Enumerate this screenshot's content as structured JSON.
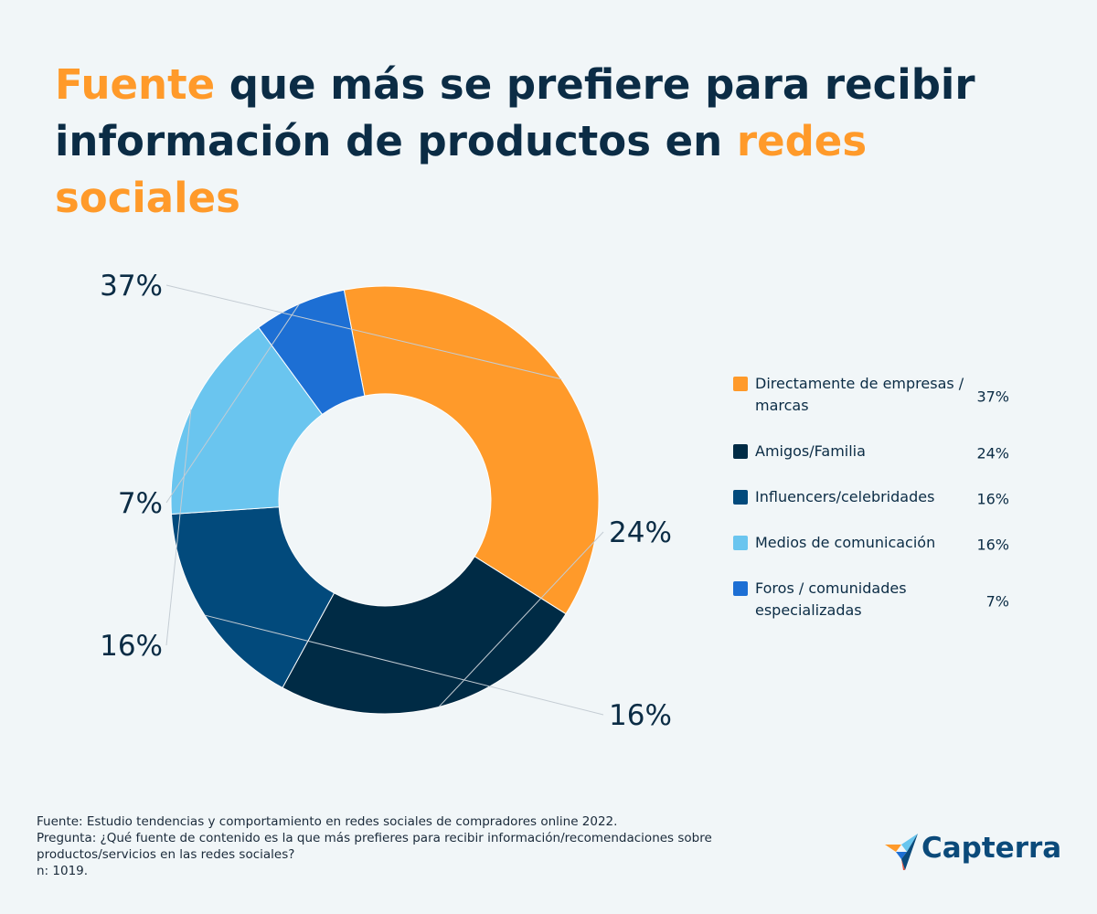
{
  "title": {
    "part1": "Fuente",
    "part2": " que más se prefiere para recibir información de productos en ",
    "part3": "redes sociales"
  },
  "colors": {
    "accent": "#ff9a2a",
    "title": "#0b2c45",
    "background": "#f1f6f8"
  },
  "chart_data": {
    "type": "pie",
    "donut": true,
    "categories": [
      "Directamente de empresas / marcas",
      "Amigos/Familia",
      "Influencers/celebridades",
      "Medios de comunicación",
      "Foros / comunidades especializadas"
    ],
    "values": [
      37,
      24,
      16,
      16,
      7
    ],
    "labels": [
      "37%",
      "24%",
      "16%",
      "16%",
      "7%"
    ],
    "colors": [
      "#ff9a2a",
      "#002b45",
      "#024a7c",
      "#6ac5ef",
      "#1d6fd4"
    ],
    "legend_position": "right"
  },
  "legend": [
    {
      "label": "Directamente de empresas / marcas",
      "value": "37%",
      "color": "#ff9a2a"
    },
    {
      "label": "Amigos/Familia",
      "value": "24%",
      "color": "#002b45"
    },
    {
      "label": "Influencers/celebridades",
      "value": "16%",
      "color": "#024a7c"
    },
    {
      "label": "Medios de comunicación",
      "value": "16%",
      "color": "#6ac5ef"
    },
    {
      "label": "Foros / comunidades especializadas",
      "value": "7%",
      "color": "#1d6fd4"
    }
  ],
  "footer": {
    "source": "Fuente: Estudio tendencias y comportamiento en redes sociales de compradores online 2022.",
    "question_line1": "Pregunta: ¿Qué fuente de contenido es la que más prefieres para recibir información/recomendaciones sobre",
    "question_line2": "productos/servicios en las redes sociales?",
    "sample": "n: 1019."
  },
  "logo": {
    "name": "Capterra",
    "icon": "capterra-arrow-icon"
  }
}
